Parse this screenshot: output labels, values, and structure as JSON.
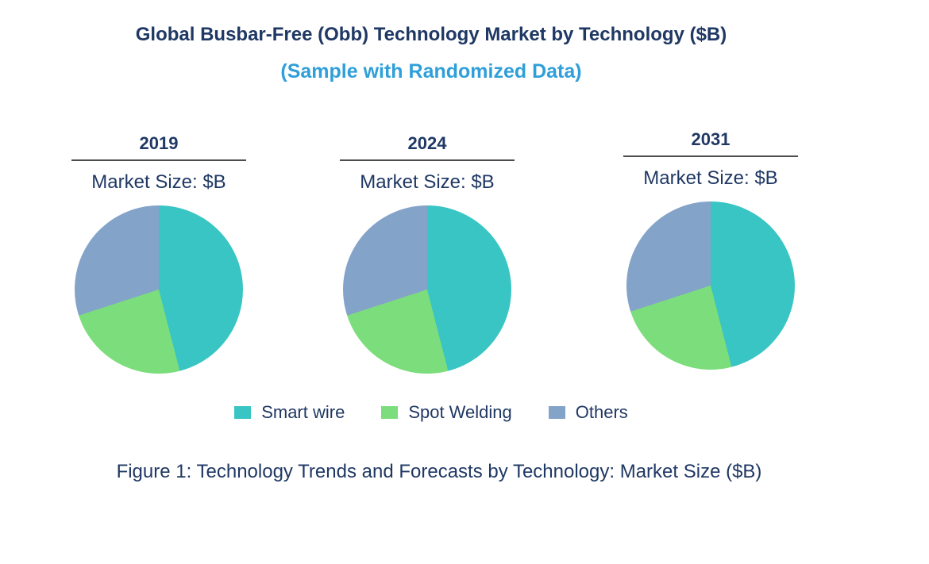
{
  "page": {
    "title": "Global Busbar-Free (Obb) Technology Market by Technology ($B)",
    "subtitle": "(Sample with Randomized Data)",
    "caption": "Figure 1: Technology Trends and Forecasts by Technology: Market Size ($B)"
  },
  "colors": {
    "title_navy": "#1F3864",
    "subtitle_blue": "#2E9FD9",
    "underline_gray": "#4D4D4D",
    "smart_wire_teal": "#38C5C4",
    "spot_welding_green": "#7CDD7D",
    "others_blue": "#84A3C9"
  },
  "legend": {
    "items": [
      {
        "label": "Smart wire",
        "color": "#38C5C4"
      },
      {
        "label": "Spot Welding",
        "color": "#7CDD7D"
      },
      {
        "label": "Others",
        "color": "#84A3C9"
      }
    ]
  },
  "chart_data": {
    "type": "pie",
    "title": "Global Busbar-Free (Obb) Technology Market by Technology ($B)",
    "subtitle": "(Sample with Randomized Data)",
    "caption": "Figure 1: Technology Trends and Forecasts by Technology: Market Size ($B)",
    "series_labels": [
      "Smart wire",
      "Spot Welding",
      "Others"
    ],
    "series_colors": [
      "#38C5C4",
      "#7CDD7D",
      "#84A3C9"
    ],
    "legend_position": "bottom",
    "value_note": "percent shares estimated from slice angles; no numeric labels shown on chart",
    "charts": [
      {
        "year": "2019",
        "axis_label": "Market Size: $B",
        "values": [
          46,
          24,
          30
        ]
      },
      {
        "year": "2024",
        "axis_label": "Market Size: $B",
        "values": [
          46,
          24,
          30
        ]
      },
      {
        "year": "2031",
        "axis_label": "Market Size: $B",
        "values": [
          46,
          24,
          30
        ]
      }
    ]
  }
}
